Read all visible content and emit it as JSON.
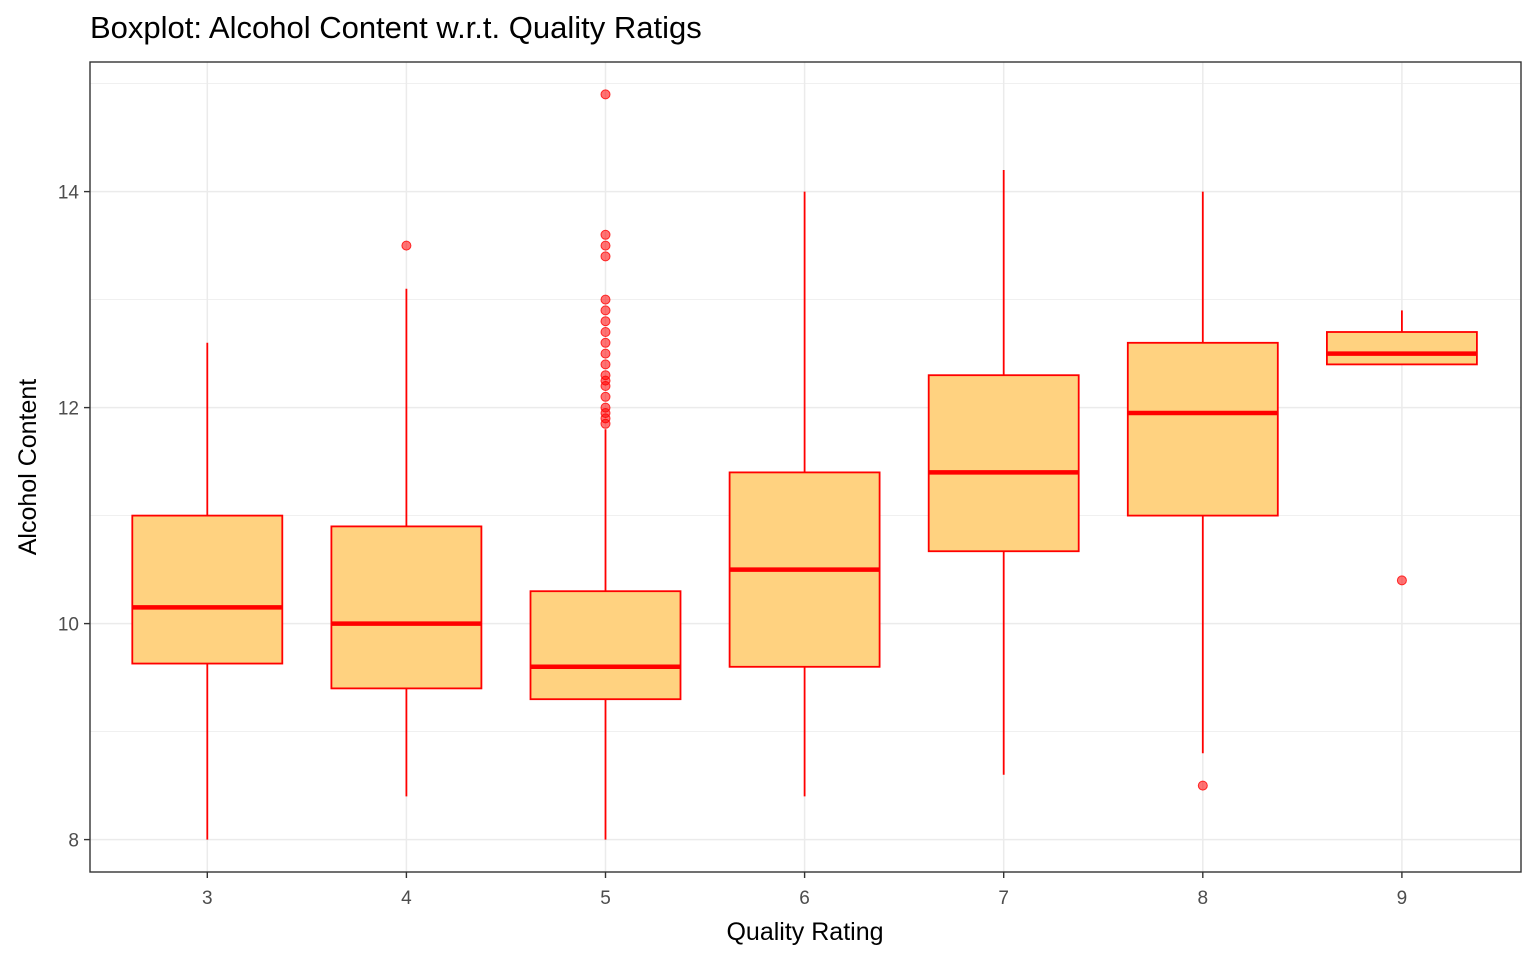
{
  "chart_data": {
    "type": "boxplot",
    "title": "Boxplot: Alcohol Content w.r.t. Quality Ratigs",
    "xlabel": "Quality Rating",
    "ylabel": "Alcohol Content",
    "categories": [
      "3",
      "4",
      "5",
      "6",
      "7",
      "8",
      "9"
    ],
    "ylim": [
      7.7,
      15.2
    ],
    "yticks": [
      8,
      10,
      12,
      14
    ],
    "grid": true,
    "colors": {
      "fill": "#ffd280",
      "stroke": "#ff0000",
      "outlier": "#ff0000",
      "grid": "#ebebeb"
    },
    "boxes": [
      {
        "category": "3",
        "whisker_low": 8.0,
        "q1": 9.63,
        "median": 10.15,
        "q3": 11.0,
        "whisker_high": 12.6,
        "outliers": []
      },
      {
        "category": "4",
        "whisker_low": 8.4,
        "q1": 9.4,
        "median": 10.0,
        "q3": 10.9,
        "whisker_high": 13.1,
        "outliers": [
          13.5
        ]
      },
      {
        "category": "5",
        "whisker_low": 8.0,
        "q1": 9.3,
        "median": 9.6,
        "q3": 10.3,
        "whisker_high": 11.8,
        "outliers": [
          11.85,
          11.9,
          11.95,
          12.0,
          12.1,
          12.2,
          12.25,
          12.3,
          12.4,
          12.5,
          12.6,
          12.7,
          12.8,
          12.9,
          13.0,
          13.4,
          13.5,
          13.6,
          14.9
        ]
      },
      {
        "category": "6",
        "whisker_low": 8.4,
        "q1": 9.6,
        "median": 10.5,
        "q3": 11.4,
        "whisker_high": 14.0,
        "outliers": []
      },
      {
        "category": "7",
        "whisker_low": 8.6,
        "q1": 10.67,
        "median": 11.4,
        "q3": 12.3,
        "whisker_high": 14.2,
        "outliers": []
      },
      {
        "category": "8",
        "whisker_low": 8.8,
        "q1": 11.0,
        "median": 11.95,
        "q3": 12.6,
        "whisker_high": 14.0,
        "outliers": [
          8.5
        ]
      },
      {
        "category": "9",
        "whisker_low": 12.4,
        "q1": 12.4,
        "median": 12.5,
        "q3": 12.7,
        "whisker_high": 12.9,
        "outliers": [
          10.4
        ]
      }
    ]
  }
}
